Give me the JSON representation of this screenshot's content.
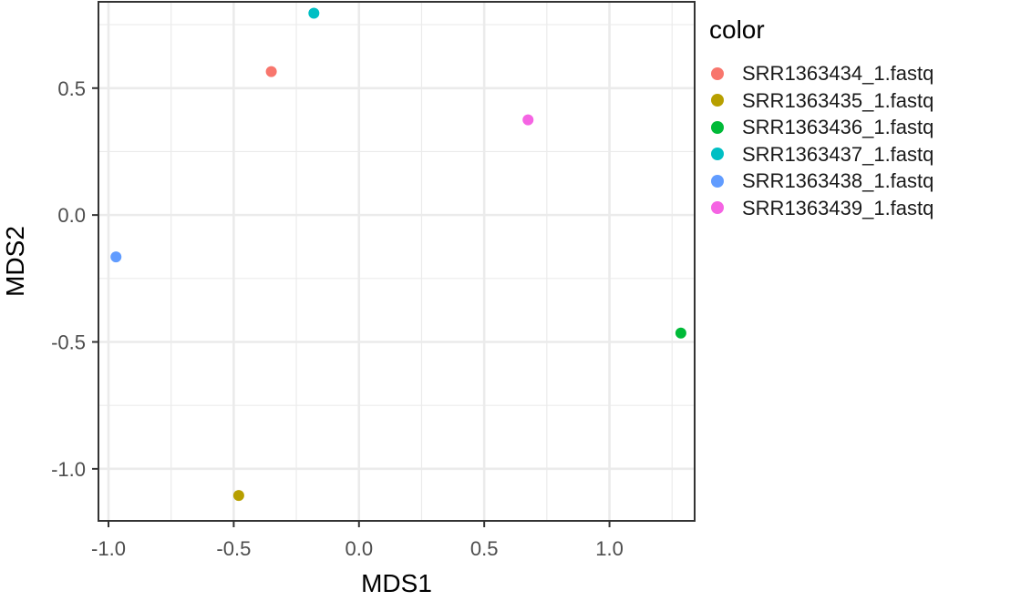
{
  "chart_data": {
    "type": "scatter",
    "xlabel": "MDS1",
    "ylabel": "MDS2",
    "xlim": [
      -1.04,
      1.34
    ],
    "ylim": [
      -1.205,
      0.84
    ],
    "x_ticks": [
      -1.0,
      -0.5,
      0.0,
      0.5,
      1.0
    ],
    "x_tick_labels": [
      "-1.0",
      "-0.5",
      "0.0",
      "0.5",
      "1.0"
    ],
    "y_ticks": [
      -1.0,
      -0.5,
      0.0,
      0.5
    ],
    "y_tick_labels": [
      "-1.0",
      "-0.5",
      "0.0",
      "0.5"
    ],
    "grid": true,
    "legend": {
      "title": "color",
      "placement": "right"
    },
    "series": [
      {
        "name": "SRR1363434_1.fastq",
        "color": "#F8766D",
        "x": -0.35,
        "y": 0.565
      },
      {
        "name": "SRR1363435_1.fastq",
        "color": "#B79F00",
        "x": -0.48,
        "y": -1.105
      },
      {
        "name": "SRR1363436_1.fastq",
        "color": "#00BA38",
        "x": 1.285,
        "y": -0.465
      },
      {
        "name": "SRR1363437_1.fastq",
        "color": "#00BFC4",
        "x": -0.18,
        "y": 0.795
      },
      {
        "name": "SRR1363438_1.fastq",
        "color": "#619CFF",
        "x": -0.97,
        "y": -0.165
      },
      {
        "name": "SRR1363439_1.fastq",
        "color": "#F564E3",
        "x": 0.675,
        "y": 0.375
      }
    ]
  }
}
